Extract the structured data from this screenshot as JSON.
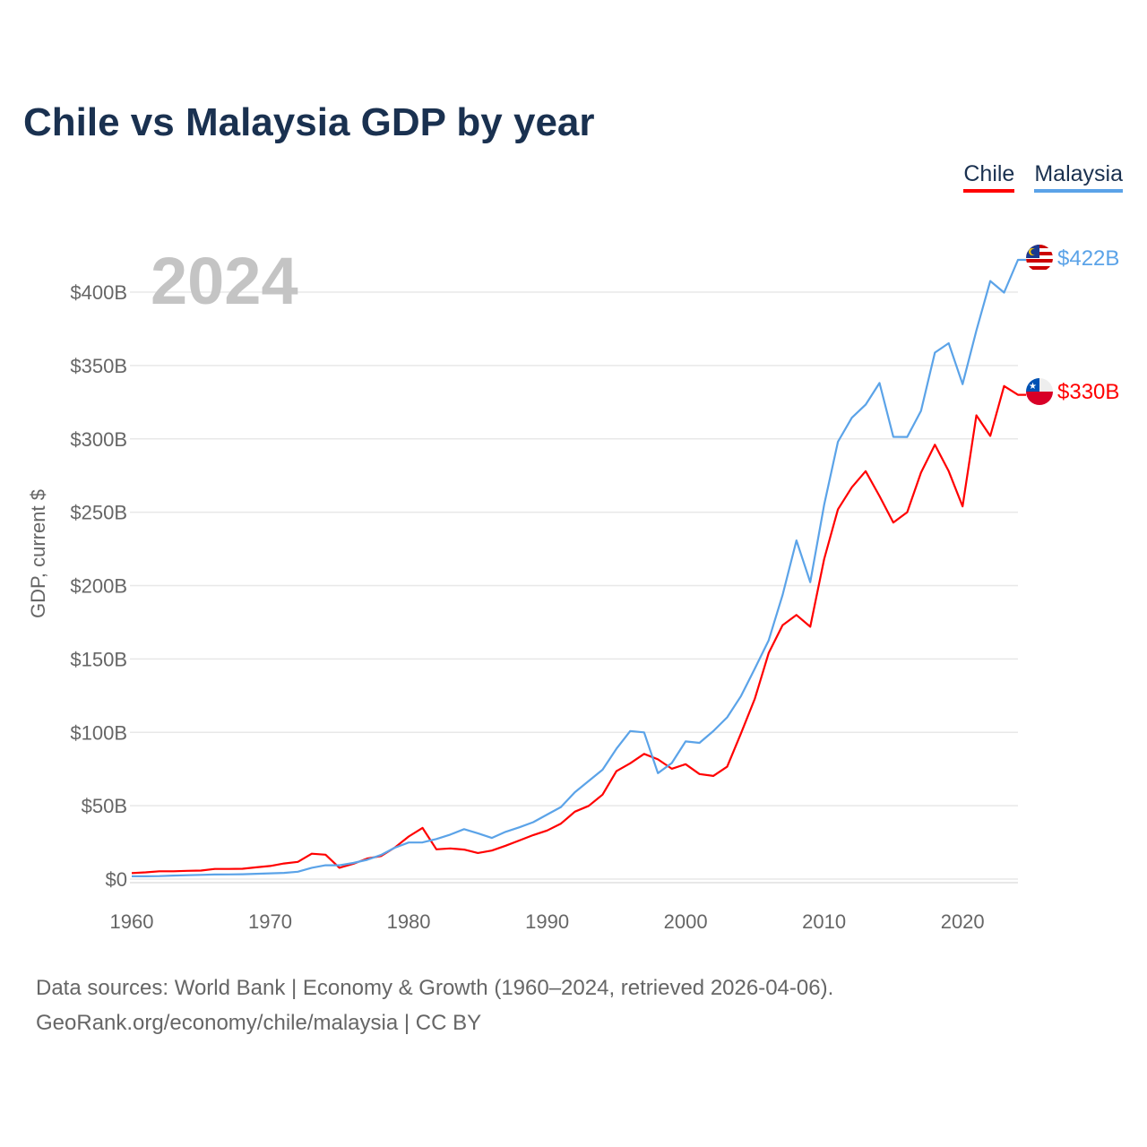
{
  "chart_data": {
    "type": "line",
    "title": "Chile vs Malaysia GDP by year",
    "ylabel": "GDP, current $",
    "xlabel": "",
    "year_label": "2024",
    "xlim": [
      1960,
      2024
    ],
    "ylim": [
      0,
      400
    ],
    "y_ticks": [
      0,
      50,
      100,
      150,
      200,
      250,
      300,
      350,
      400
    ],
    "y_tick_labels": [
      "$0",
      "$50B",
      "$100B",
      "$150B",
      "$200B",
      "$250B",
      "$300B",
      "$350B",
      "$400B"
    ],
    "x_ticks": [
      1960,
      1970,
      1980,
      1990,
      2000,
      2010,
      2020
    ],
    "x_tick_labels": [
      "1960",
      "1970",
      "1980",
      "1990",
      "2000",
      "2010",
      "2020"
    ],
    "grid": true,
    "legend_placement": "top-right",
    "x": [
      1960,
      1961,
      1962,
      1963,
      1964,
      1965,
      1966,
      1967,
      1968,
      1969,
      1970,
      1971,
      1972,
      1973,
      1974,
      1975,
      1976,
      1977,
      1978,
      1979,
      1980,
      1981,
      1982,
      1983,
      1984,
      1985,
      1986,
      1987,
      1988,
      1989,
      1990,
      1991,
      1992,
      1993,
      1994,
      1995,
      1996,
      1997,
      1998,
      1999,
      2000,
      2001,
      2002,
      2003,
      2004,
      2005,
      2006,
      2007,
      2008,
      2009,
      2010,
      2011,
      2012,
      2013,
      2014,
      2015,
      2016,
      2017,
      2018,
      2019,
      2020,
      2021,
      2022,
      2023,
      2024
    ],
    "series": [
      {
        "name": "Chile",
        "color": "#ff0000",
        "end_label": "$330B",
        "values": [
          4.1,
          4.6,
          5.3,
          5.3,
          5.6,
          5.8,
          6.9,
          6.9,
          7.0,
          8.0,
          8.9,
          10.6,
          11.7,
          17.3,
          16.6,
          7.7,
          10.4,
          14.0,
          15.7,
          21.5,
          29.0,
          34.9,
          20.3,
          20.9,
          20.1,
          17.8,
          19.4,
          22.7,
          26.3,
          30.0,
          33.1,
          37.8,
          45.9,
          49.9,
          57.5,
          73.5,
          78.9,
          85.3,
          81.6,
          75.2,
          78.3,
          71.6,
          70.3,
          76.6,
          99.3,
          123,
          154,
          173,
          180,
          172,
          218,
          252,
          267,
          278,
          261,
          243,
          250,
          277,
          296,
          278,
          254,
          316,
          302,
          336,
          330
        ]
      },
      {
        "name": "Malaysia",
        "color": "#5ba3e8",
        "end_label": "$422B",
        "values": [
          1.9,
          1.9,
          2.0,
          2.4,
          2.6,
          2.9,
          3.1,
          3.2,
          3.3,
          3.6,
          3.9,
          4.2,
          5.0,
          7.7,
          9.4,
          9.4,
          11.0,
          13.1,
          16.4,
          21.4,
          24.9,
          25.0,
          27.3,
          30.3,
          34.0,
          31.2,
          28.0,
          32.2,
          35.3,
          38.8,
          44.0,
          49.1,
          59.2,
          66.9,
          74.5,
          88.8,
          100.9,
          100.0,
          72.2,
          79.1,
          93.8,
          92.8,
          100.8,
          110.2,
          124.7,
          143.5,
          162.7,
          193.5,
          230.8,
          202.3,
          255.0,
          298.0,
          314.4,
          323.3,
          338.1,
          301.4,
          301.3,
          319.1,
          358.8,
          365.2,
          337.3,
          373.8,
          407.6,
          399.7,
          422
        ]
      }
    ]
  },
  "source": {
    "line1": "Data sources: World Bank | Economy & Growth (1960–2024, retrieved 2026-04-06).",
    "line2": "GeoRank.org/economy/chile/malaysia | CC BY"
  }
}
